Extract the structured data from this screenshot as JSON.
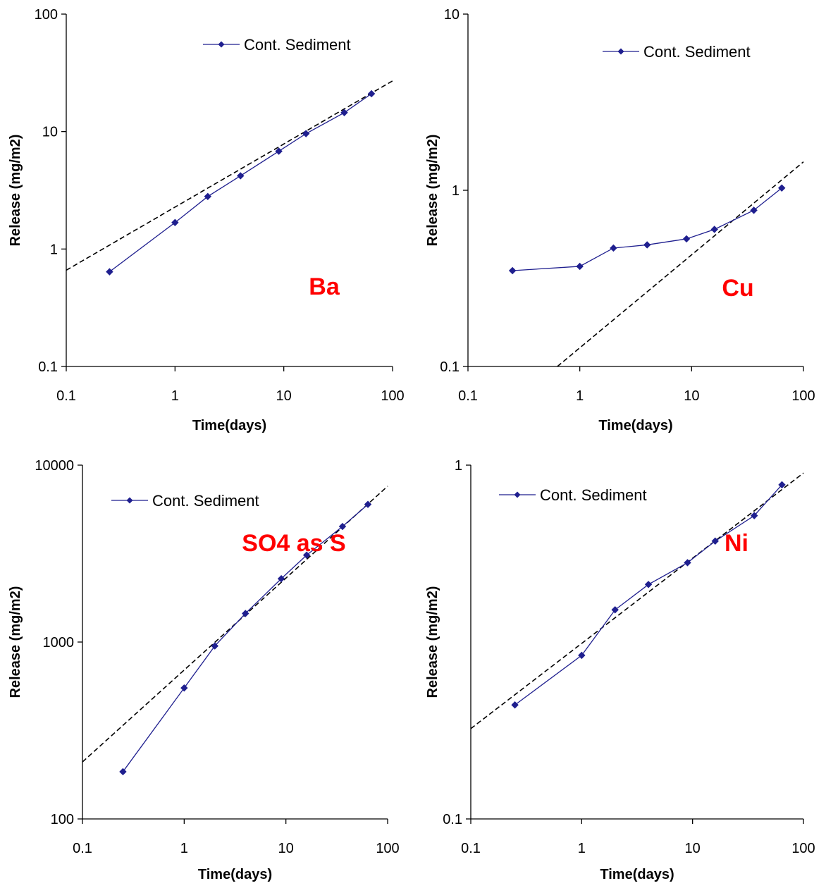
{
  "chart_data": [
    {
      "type": "line",
      "xscale": "log",
      "yscale": "log",
      "xlabel": "Time(days)",
      "ylabel": "Release (mg/m2)",
      "xlim": [
        0.1,
        100
      ],
      "ylim": [
        0.1,
        100
      ],
      "x_ticks": [
        "0.1",
        "1",
        "10",
        "100"
      ],
      "y_ticks": [
        "0.1",
        "1",
        "10",
        "100"
      ],
      "annotation": "Ba",
      "annotation_color": "#ff0000",
      "legend_position": "top-right",
      "series": [
        {
          "name": "Cont. Sediment",
          "color": "#1f1f8f",
          "marker": "diamond",
          "x": [
            0.25,
            1,
            2,
            4,
            9,
            16,
            36,
            64
          ],
          "y": [
            0.64,
            1.68,
            2.8,
            4.2,
            6.8,
            9.6,
            14.5,
            21
          ]
        }
      ],
      "trendline": {
        "style": "dashed",
        "color": "#000000",
        "x": [
          0.1,
          100
        ],
        "y": [
          0.66,
          27
        ]
      }
    },
    {
      "type": "line",
      "xscale": "log",
      "yscale": "log",
      "xlabel": "Time(days)",
      "ylabel": "Release (mg/m2)",
      "xlim": [
        0.1,
        100
      ],
      "ylim": [
        0.1,
        10
      ],
      "x_ticks": [
        "0.1",
        "1",
        "10",
        "100"
      ],
      "y_ticks": [
        "0.1",
        "1",
        "10"
      ],
      "annotation": "Cu",
      "annotation_color": "#ff0000",
      "legend_position": "top-right",
      "series": [
        {
          "name": "Cont. Sediment",
          "color": "#1f1f8f",
          "marker": "diamond",
          "x": [
            0.25,
            1,
            2,
            4,
            9,
            16,
            36,
            64
          ],
          "y": [
            0.35,
            0.37,
            0.47,
            0.49,
            0.53,
            0.6,
            0.77,
            1.03
          ]
        }
      ],
      "trendline": {
        "style": "dashed",
        "color": "#000000",
        "x": [
          0.63,
          100
        ],
        "y": [
          0.1,
          1.45
        ]
      }
    },
    {
      "type": "line",
      "xscale": "log",
      "yscale": "log",
      "xlabel": "Time(days)",
      "ylabel": "Release (mg/m2)",
      "xlim": [
        0.1,
        100
      ],
      "ylim": [
        100,
        10000
      ],
      "x_ticks": [
        "0.1",
        "1",
        "10",
        "100"
      ],
      "y_ticks": [
        "100",
        "1000",
        "10000"
      ],
      "annotation": "SO4 as S",
      "annotation_color": "#ff0000",
      "legend_position": "top-left",
      "series": [
        {
          "name": "Cont. Sediment",
          "color": "#1f1f8f",
          "marker": "diamond",
          "x": [
            0.25,
            1,
            2,
            4,
            9,
            16,
            36,
            64
          ],
          "y": [
            185,
            550,
            950,
            1450,
            2280,
            3100,
            4500,
            6000
          ]
        }
      ],
      "trendline": {
        "style": "dashed",
        "color": "#000000",
        "x": [
          0.1,
          100
        ],
        "y": [
          210,
          7600
        ]
      }
    },
    {
      "type": "line",
      "xscale": "log",
      "yscale": "log",
      "xlabel": "Time(days)",
      "ylabel": "Release (mg/m2)",
      "xlim": [
        0.1,
        100
      ],
      "ylim": [
        0.1,
        1
      ],
      "x_ticks": [
        "0.1",
        "1",
        "10",
        "100"
      ],
      "y_ticks": [
        "0.1",
        "1"
      ],
      "annotation": "Ni",
      "annotation_color": "#ff0000",
      "legend_position": "top-left",
      "series": [
        {
          "name": "Cont. Sediment",
          "color": "#1f1f8f",
          "marker": "diamond",
          "x": [
            0.25,
            1,
            2,
            4,
            9,
            16,
            36,
            64
          ],
          "y": [
            0.21,
            0.29,
            0.39,
            0.46,
            0.53,
            0.61,
            0.72,
            0.88
          ]
        }
      ],
      "trendline": {
        "style": "dashed",
        "color": "#000000",
        "x": [
          0.1,
          100
        ],
        "y": [
          0.18,
          0.95
        ]
      }
    }
  ]
}
